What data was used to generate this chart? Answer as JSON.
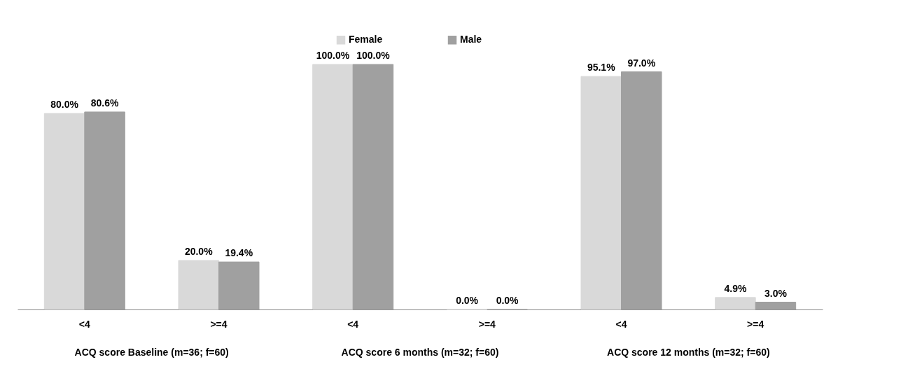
{
  "chart_data": {
    "type": "bar",
    "categories": [
      "<4",
      ">=4",
      "<4",
      ">=4",
      "<4",
      ">=4"
    ],
    "legend": "top",
    "annotations": [
      "ACQ score Baseline (m=36; f=60)",
      "ACQ score 6 months (m=32; f=60)",
      "ACQ score 12 months (m=32; f=60)"
    ],
    "series": [
      {
        "name": "Female",
        "color": "#d9d9d9",
        "values": [
          80.0,
          20.0,
          100.0,
          0.0,
          95.1,
          4.9
        ],
        "value_labels": [
          "80.0%",
          "20.0%",
          "100.0%",
          "0.0%",
          "95.1%",
          "4.9%"
        ]
      },
      {
        "name": "Male",
        "color": "#a0a0a0",
        "values": [
          80.6,
          19.4,
          100.0,
          0.0,
          97.0,
          3.0
        ],
        "value_labels": [
          "80.6%",
          "19.4%",
          "100.0%",
          "0.0%",
          "97.0%",
          "3.0%"
        ]
      }
    ]
  }
}
